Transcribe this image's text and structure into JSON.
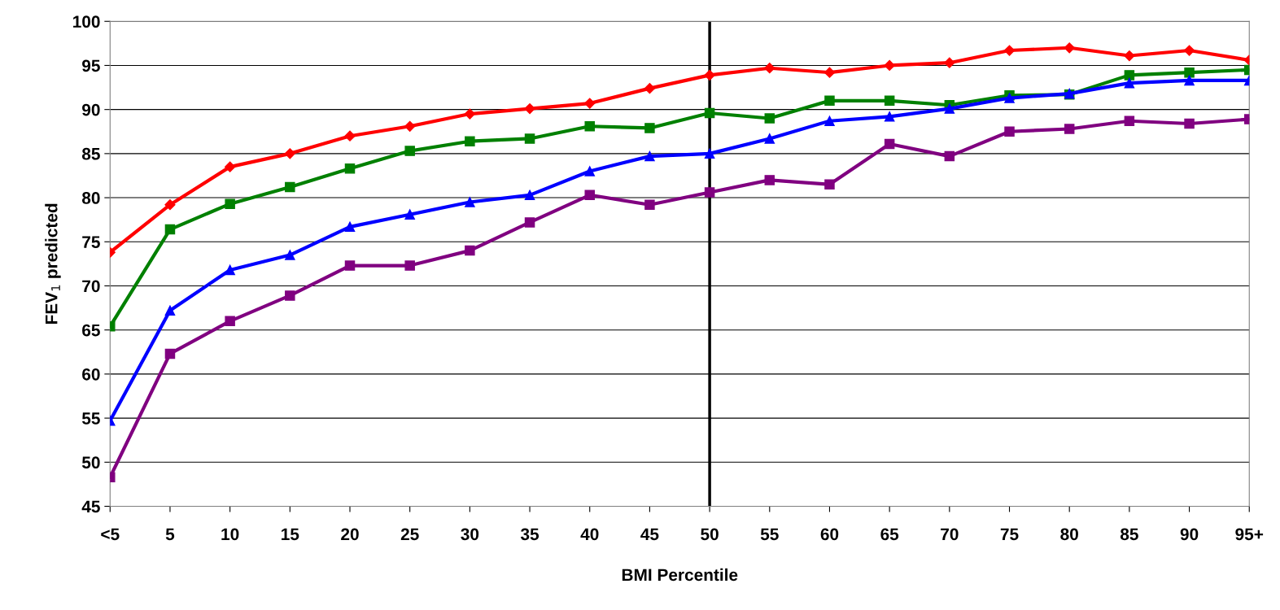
{
  "chart_data": {
    "type": "line",
    "xlabel": "BMI Percentile",
    "ylabel": "FEV$_{1}$ predicted",
    "categories": [
      "<5",
      "5",
      "10",
      "15",
      "20",
      "25",
      "30",
      "35",
      "40",
      "45",
      "50",
      "55",
      "60",
      "65",
      "70",
      "75",
      "80",
      "85",
      "90",
      "95+"
    ],
    "series": [
      {
        "color": "#ff0000",
        "marker": "diamond",
        "values": [
          73.8,
          79.2,
          83.5,
          85.0,
          87.0,
          88.1,
          89.5,
          90.1,
          90.7,
          92.4,
          93.9,
          94.7,
          94.2,
          95.0,
          95.3,
          96.7,
          97.0,
          96.1,
          96.7,
          95.6
        ]
      },
      {
        "color": "#008000",
        "marker": "square",
        "values": [
          65.4,
          76.4,
          79.3,
          81.2,
          83.3,
          85.3,
          86.4,
          86.7,
          88.1,
          87.9,
          89.6,
          89.0,
          91.0,
          91.0,
          90.5,
          91.6,
          91.7,
          93.9,
          94.2,
          94.5
        ]
      },
      {
        "color": "#0000ff",
        "marker": "triangle",
        "values": [
          54.7,
          67.2,
          71.8,
          73.5,
          76.7,
          78.1,
          79.5,
          80.3,
          83.0,
          84.7,
          85.0,
          86.7,
          88.7,
          89.2,
          90.1,
          91.3,
          91.8,
          93.0,
          93.3,
          93.3
        ]
      },
      {
        "color": "#800080",
        "marker": "square",
        "values": [
          48.3,
          62.3,
          66.0,
          68.9,
          72.3,
          72.3,
          74.0,
          77.2,
          80.3,
          79.2,
          80.6,
          82.0,
          81.5,
          86.1,
          84.7,
          87.5,
          87.8,
          88.7,
          88.4,
          88.9
        ]
      }
    ],
    "ylim": [
      45,
      100
    ],
    "yticks": [
      45,
      50,
      55,
      60,
      65,
      70,
      75,
      80,
      85,
      90,
      95,
      100
    ],
    "grid": "y",
    "line_style": "solid",
    "ref_lines": [
      {
        "axis": "x",
        "value": "50",
        "color": "#000000"
      }
    ]
  }
}
